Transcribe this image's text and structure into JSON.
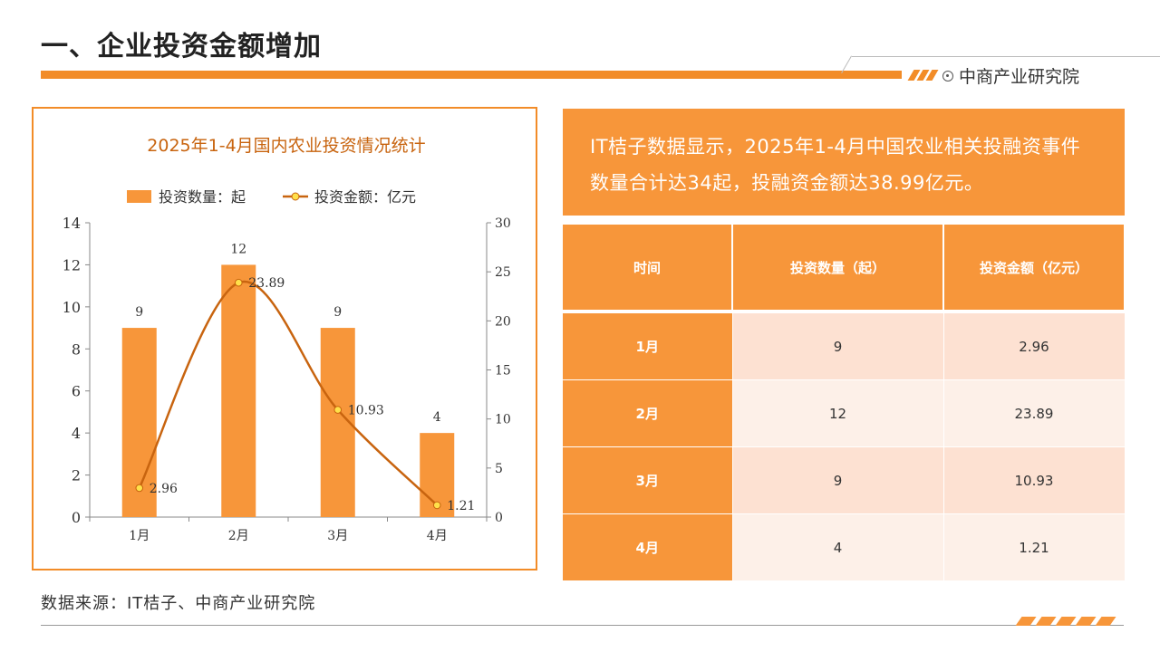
{
  "page": {
    "title": "一、企业投资金额增加",
    "brand": "中商产业研究院",
    "source": "数据来源：IT桔子、中商产业研究院",
    "accent_color": "#f28c28"
  },
  "info": {
    "text": "IT桔子数据显示，2025年1-4月中国农业相关投融资事件数量合计达34起，投融资金额达38.99亿元。"
  },
  "table": {
    "headers": [
      "时间",
      "投资数量（起）",
      "投资金额（亿元）"
    ],
    "rows": [
      [
        "1月",
        "9",
        "2.96"
      ],
      [
        "2月",
        "12",
        "23.89"
      ],
      [
        "3月",
        "9",
        "10.93"
      ],
      [
        "4月",
        "4",
        "1.21"
      ]
    ]
  },
  "chart_data": {
    "type": "bar",
    "title": "2025年1-4月国内农业投资情况统计",
    "categories": [
      "1月",
      "2月",
      "3月",
      "4月"
    ],
    "series": [
      {
        "name": "投资数量：起",
        "type": "bar",
        "axis": "left",
        "values": [
          9,
          12,
          9,
          4
        ],
        "color": "#f7963a"
      },
      {
        "name": "投资金额：亿元",
        "type": "line",
        "axis": "right",
        "values": [
          2.96,
          23.89,
          10.93,
          1.21
        ],
        "color": "#c8640f",
        "marker_color": "#ffe04a"
      }
    ],
    "y_left": {
      "min": 0,
      "max": 14,
      "ticks": [
        0,
        2,
        4,
        6,
        8,
        10,
        12,
        14
      ]
    },
    "y_right": {
      "min": 0,
      "max": 30,
      "ticks": [
        0,
        5,
        10,
        15,
        20,
        25,
        30
      ]
    },
    "bar_labels": [
      "9",
      "12",
      "9",
      "4"
    ],
    "line_labels": [
      "2.96",
      "23.89",
      "10.93",
      "1.21"
    ],
    "grid": false,
    "legend_position": "top"
  }
}
